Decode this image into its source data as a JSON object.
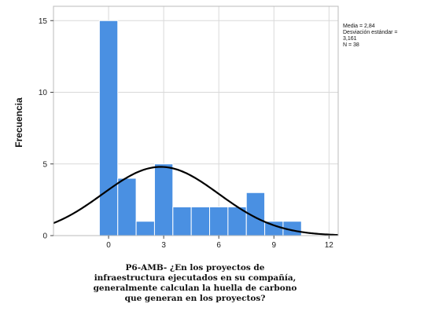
{
  "chart_data": {
    "type": "bar",
    "subtype": "histogram",
    "bins": [
      {
        "start": -0.5,
        "end": 0.5,
        "value": 15
      },
      {
        "start": 0.5,
        "end": 1.5,
        "value": 4
      },
      {
        "start": 1.5,
        "end": 2.5,
        "value": 1
      },
      {
        "start": 2.5,
        "end": 3.5,
        "value": 5
      },
      {
        "start": 3.5,
        "end": 4.5,
        "value": 2
      },
      {
        "start": 4.5,
        "end": 5.5,
        "value": 2
      },
      {
        "start": 5.5,
        "end": 6.5,
        "value": 2
      },
      {
        "start": 6.5,
        "end": 7.5,
        "value": 2
      },
      {
        "start": 7.5,
        "end": 8.5,
        "value": 3
      },
      {
        "start": 8.5,
        "end": 9.5,
        "value": 1
      },
      {
        "start": 9.5,
        "end": 10.5,
        "value": 1
      }
    ],
    "normal_curve": {
      "mean": 2.84,
      "sd": 3.161,
      "n": 38,
      "bin_width": 1
    },
    "ylabel": "Frecuencia",
    "xlabel_lines": [
      "P6-AMB- ¿En los proyectos de",
      "infraestructura ejecutados en su compañía,",
      "generalmente calculan la huella de carbono",
      "que generan en los proyectos?"
    ],
    "stats_lines": [
      "Media = 2,84",
      "Desviación estándar =",
      "3,161",
      "N = 38"
    ],
    "xlim": [
      -3,
      12.5
    ],
    "ylim": [
      0,
      16
    ],
    "xticks": [
      0,
      3,
      6,
      9,
      12
    ],
    "yticks": [
      0,
      5,
      10,
      15
    ],
    "grid": true,
    "colors": {
      "bar": "#4a90e2",
      "bar_edge": "#ffffff",
      "curve": "#000000",
      "grid": "#d9d9d9",
      "frame": "#bbbbbb"
    }
  }
}
